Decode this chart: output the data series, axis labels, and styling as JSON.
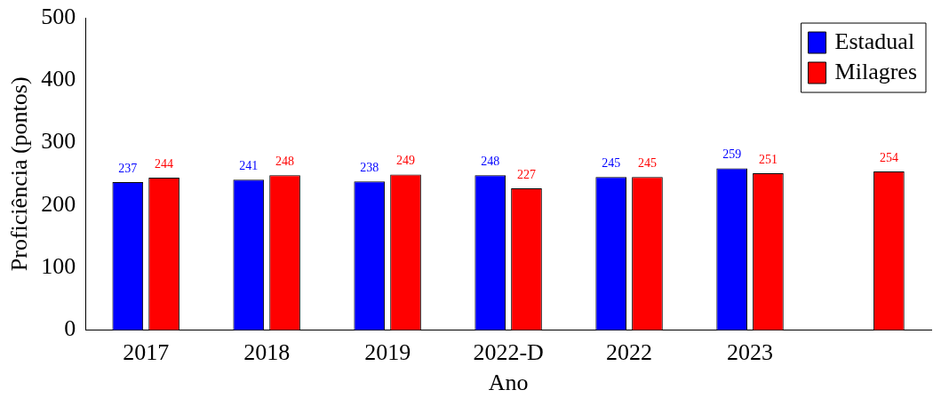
{
  "chart_data": {
    "type": "bar",
    "xlabel": "Ano",
    "ylabel": "Proficiência (pontos)",
    "categories": [
      "2017",
      "2018",
      "2019",
      "2022-D",
      "2022",
      "2023",
      null
    ],
    "series": [
      {
        "name": "Estadual",
        "color": "#0000ff",
        "values": [
          237,
          241,
          238,
          248,
          245,
          259,
          null
        ]
      },
      {
        "name": "Milagres",
        "color": "#ff0000",
        "values": [
          244,
          248,
          249,
          227,
          245,
          251,
          254
        ]
      }
    ],
    "ylim": [
      0,
      500
    ],
    "yticks": [
      0,
      100,
      200,
      300,
      400,
      500
    ],
    "grid": false,
    "legend": "top right",
    "data_labels": true
  }
}
